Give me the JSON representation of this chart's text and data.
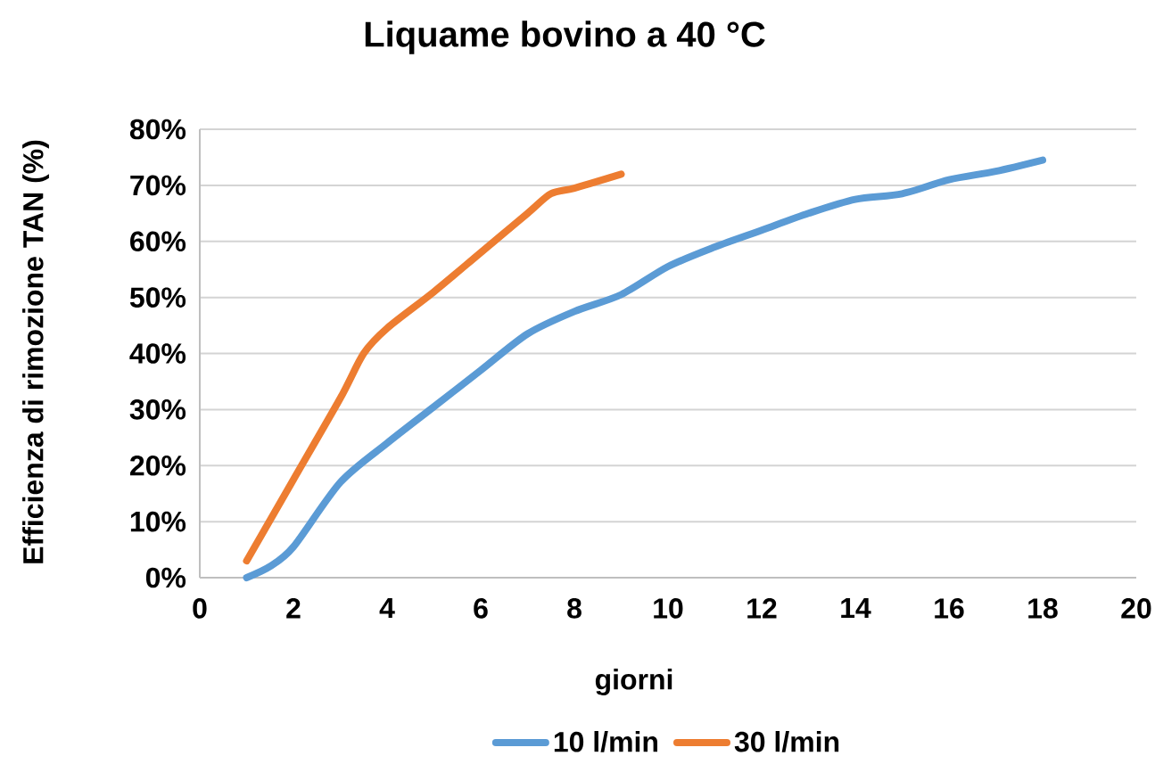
{
  "chart_data": {
    "type": "line",
    "title": "Liquame bovino a 40 °C",
    "xlabel": "giorni",
    "ylabel": "Efficienza di rimozione TAN (%)",
    "series": [
      {
        "name": "10 l/min",
        "color": "#5b9bd5",
        "x": [
          1,
          1.5,
          2,
          3,
          4,
          5,
          6,
          7,
          8,
          9,
          10,
          11,
          12,
          13,
          14,
          15,
          16,
          17,
          18
        ],
        "values": [
          0,
          2,
          5.5,
          17,
          24,
          30.5,
          37,
          43.5,
          47.5,
          50.5,
          55.5,
          59,
          62,
          65,
          67.5,
          68.5,
          71,
          72.5,
          74.5
        ]
      },
      {
        "name": "30 l/min",
        "color": "#ed7d31",
        "x": [
          1,
          2,
          3,
          3.5,
          4,
          5,
          6,
          7,
          7.5,
          8,
          9
        ],
        "values": [
          3,
          17.5,
          32,
          40,
          44.5,
          51,
          58,
          65,
          68.5,
          69.5,
          72
        ]
      }
    ],
    "xlim": [
      0,
      20
    ],
    "xticks": [
      0,
      2,
      4,
      6,
      8,
      10,
      12,
      14,
      16,
      18,
      20
    ],
    "ylim": [
      0,
      80
    ],
    "yticks": [
      {
        "value": 0,
        "label": "0%"
      },
      {
        "value": 10,
        "label": "10%"
      },
      {
        "value": 20,
        "label": "20%"
      },
      {
        "value": 30,
        "label": "30%"
      },
      {
        "value": 40,
        "label": "40%"
      },
      {
        "value": 50,
        "label": "50%"
      },
      {
        "value": 60,
        "label": "60%"
      },
      {
        "value": 70,
        "label": "70%"
      },
      {
        "value": 80,
        "label": "80%"
      }
    ],
    "grid": "y",
    "legend": "bottom",
    "marker": "none",
    "line_style": "solid"
  }
}
